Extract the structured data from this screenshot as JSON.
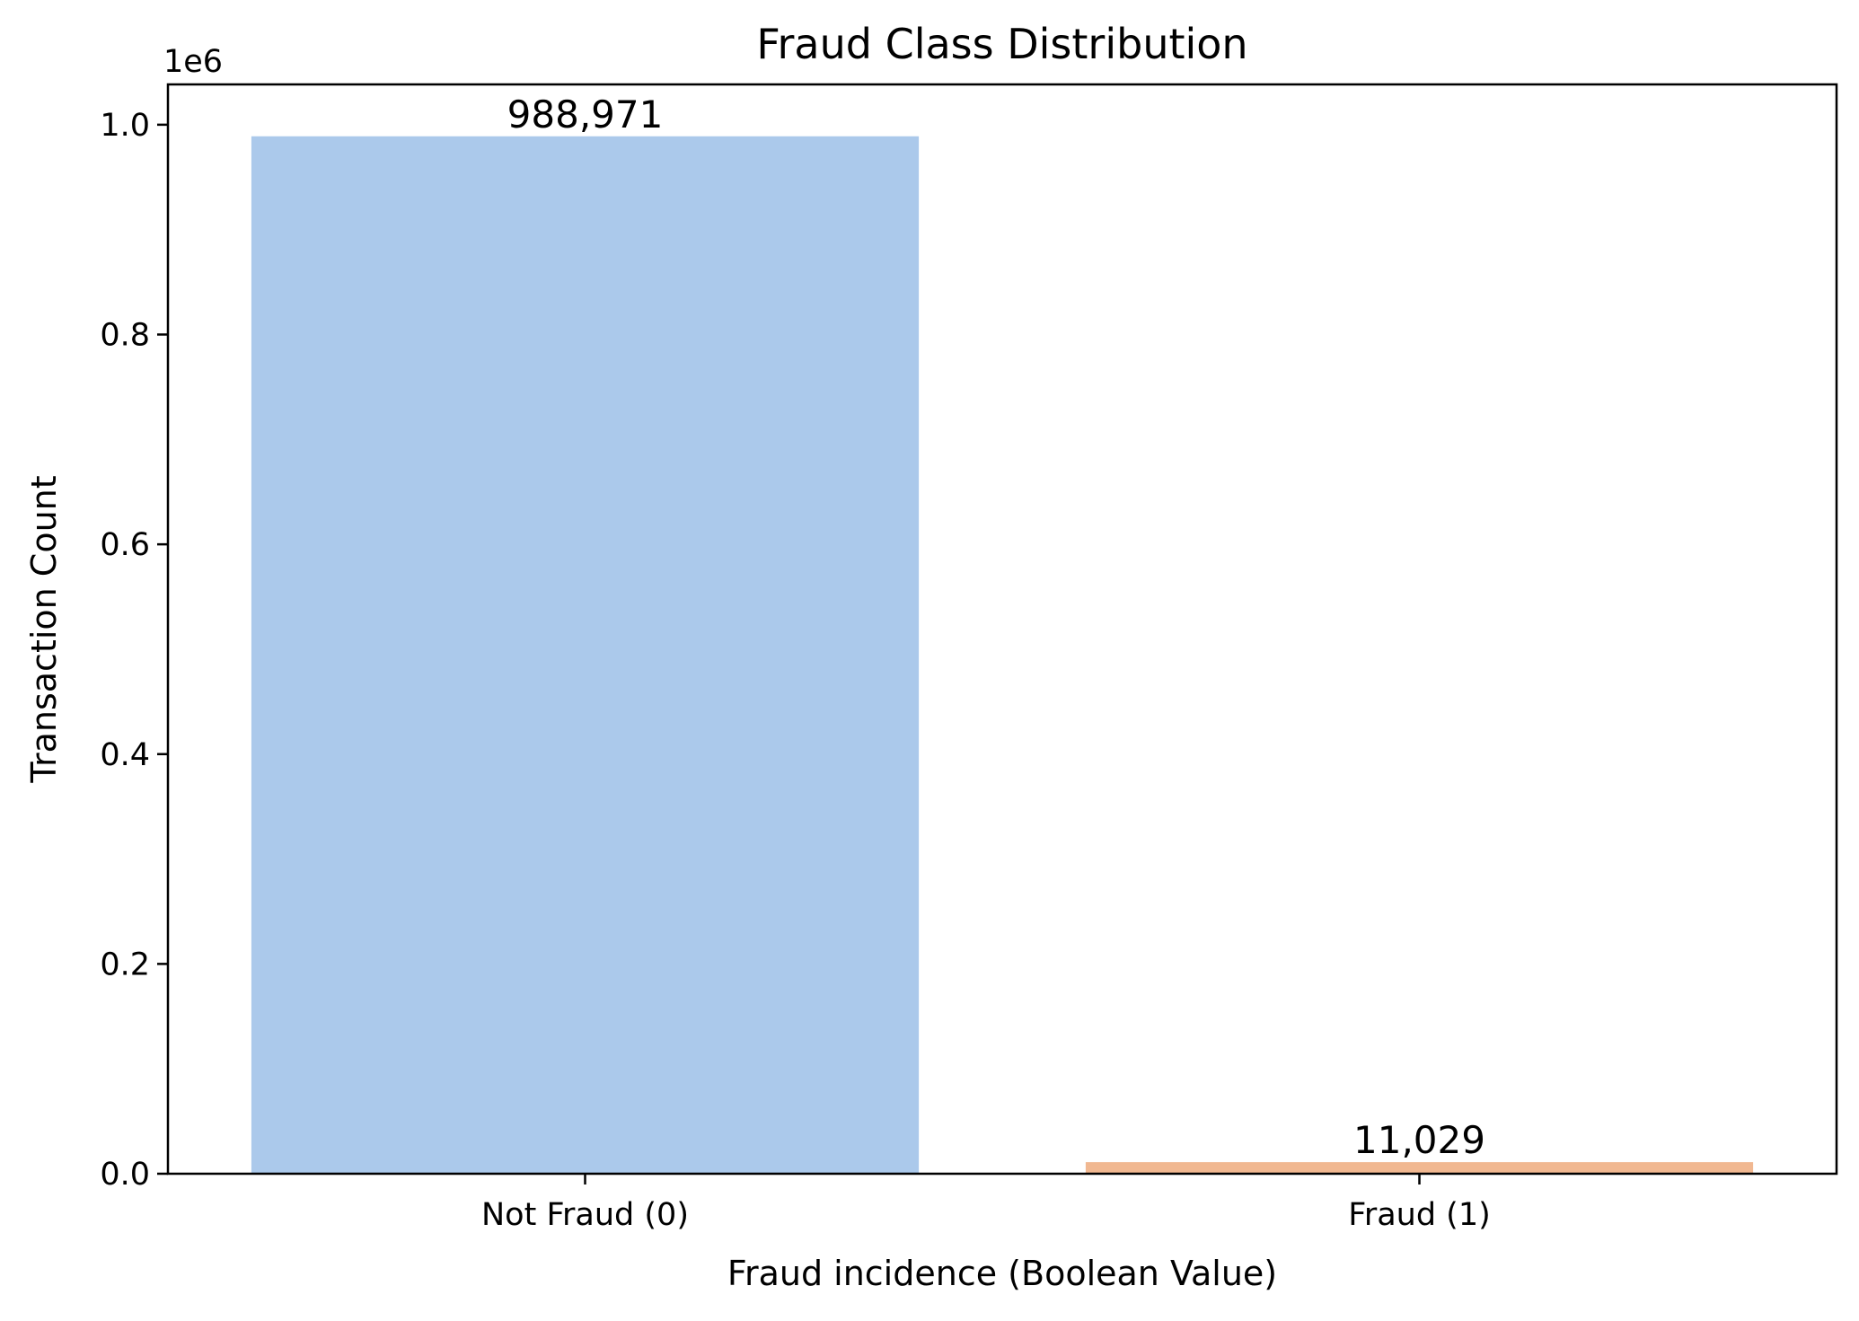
{
  "chart_data": {
    "type": "bar",
    "title": "Fraud Class Distribution",
    "xlabel": "Fraud incidence (Boolean Value)",
    "ylabel": "Transaction Count",
    "y_offset_label": "1e6",
    "categories": [
      "Not Fraud (0)",
      "Fraud (1)"
    ],
    "values": [
      988971,
      11029
    ],
    "value_labels": [
      "988,971",
      "11,029"
    ],
    "colors": [
      "#abc9eb",
      "#f1b891"
    ],
    "ylim": [
      0,
      1038420
    ],
    "yticks": [
      0,
      200000,
      400000,
      600000,
      800000,
      1000000
    ],
    "ytick_labels": [
      "0.0",
      "0.2",
      "0.4",
      "0.6",
      "0.8",
      "1.0"
    ],
    "grid": false,
    "legend": "none"
  }
}
